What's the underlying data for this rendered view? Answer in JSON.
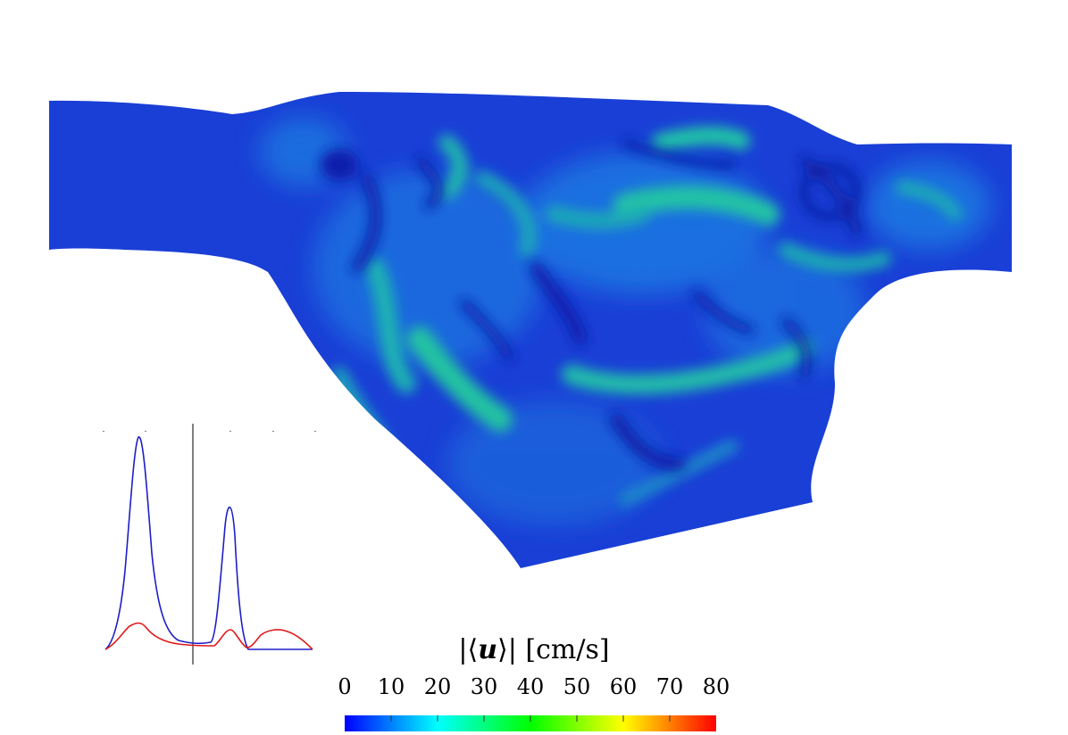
{
  "figure": {
    "colorbar": {
      "title": "|⟨u⟩| [cm/s]",
      "title_parts": [
        "|⟨",
        "u",
        "⟩| [cm/s]"
      ],
      "ticks": [
        "0",
        "10",
        "20",
        "30",
        "40",
        "50",
        "60",
        "70",
        "80"
      ],
      "range": [
        0,
        80
      ],
      "colormap": "jet",
      "colors": [
        "#0000ff",
        "#0080ff",
        "#00ffff",
        "#00ff80",
        "#00ff00",
        "#80ff00",
        "#ffff00",
        "#ff8000",
        "#ff0000"
      ]
    },
    "field": {
      "background_color": "#1a3fd6",
      "low_color": "#0a1fb8",
      "mid_color": "#1f7fe0",
      "high_color": "#21c4a8"
    },
    "inset_plot": {
      "series": [
        {
          "color": "#1e1ec8"
        },
        {
          "color": "#e01818"
        }
      ],
      "axis_color": "#000000"
    }
  }
}
